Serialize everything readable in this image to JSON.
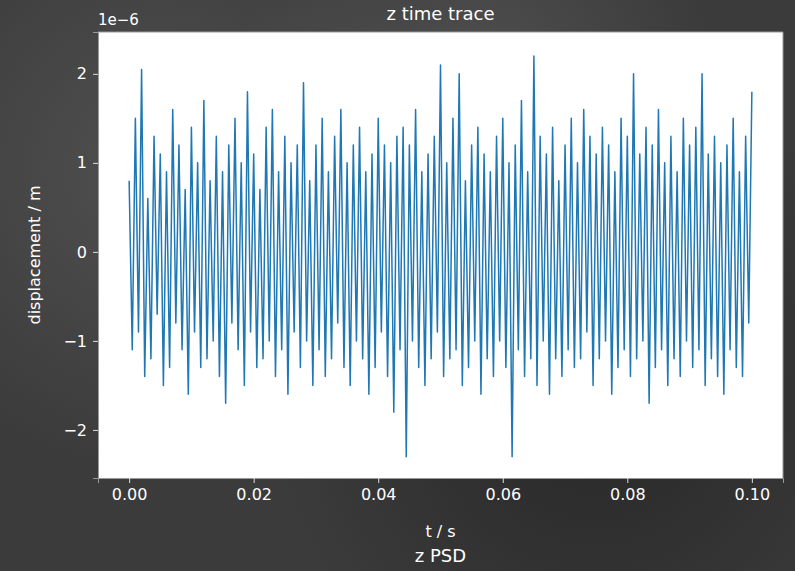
{
  "chart_data": {
    "type": "line",
    "title": "z time trace",
    "x_label": "t / s",
    "y_label": "displacement / m",
    "y_scale_label": "1e−6",
    "annotation": "z PSD",
    "color": "#1f77b4",
    "xlim": [
      -0.005,
      0.105
    ],
    "ylim": [
      -2.54,
      2.47
    ],
    "xticks": [
      {
        "value": 0,
        "label": "0.00"
      },
      {
        "value": 0.02,
        "label": "0.02"
      },
      {
        "value": 0.04,
        "label": "0.04"
      },
      {
        "value": 0.06,
        "label": "0.06"
      },
      {
        "value": 0.08,
        "label": "0.08"
      },
      {
        "value": 0.1,
        "label": "0.10"
      }
    ],
    "yticks": [
      {
        "value": -2,
        "label": "−2"
      },
      {
        "value": -1,
        "label": "−1"
      },
      0,
      1,
      2
    ],
    "x": [
      0,
      0.0005,
      0.001,
      0.0015,
      0.002,
      0.0025,
      0.003,
      0.0035,
      0.004,
      0.0045,
      0.005,
      0.0055,
      0.006,
      0.0065,
      0.007,
      0.0075,
      0.008,
      0.0085,
      0.009,
      0.0095,
      0.01,
      0.0105,
      0.011,
      0.0115,
      0.012,
      0.0125,
      0.013,
      0.0135,
      0.014,
      0.0145,
      0.015,
      0.0155,
      0.016,
      0.0165,
      0.017,
      0.0175,
      0.018,
      0.0185,
      0.019,
      0.0195,
      0.02,
      0.0205,
      0.021,
      0.0215,
      0.022,
      0.0225,
      0.023,
      0.0235,
      0.024,
      0.0245,
      0.025,
      0.0255,
      0.026,
      0.0265,
      0.027,
      0.0275,
      0.028,
      0.0285,
      0.029,
      0.0295,
      0.03,
      0.0305,
      0.031,
      0.0315,
      0.032,
      0.0325,
      0.033,
      0.0335,
      0.034,
      0.0345,
      0.035,
      0.0355,
      0.036,
      0.0365,
      0.037,
      0.0375,
      0.038,
      0.0385,
      0.039,
      0.0395,
      0.04,
      0.0405,
      0.041,
      0.0415,
      0.042,
      0.0425,
      0.043,
      0.0435,
      0.044,
      0.0445,
      0.045,
      0.0455,
      0.046,
      0.0465,
      0.047,
      0.0475,
      0.048,
      0.0485,
      0.049,
      0.0495,
      0.05,
      0.0505,
      0.051,
      0.0515,
      0.052,
      0.0525,
      0.053,
      0.0535,
      0.054,
      0.0545,
      0.055,
      0.0555,
      0.056,
      0.0565,
      0.057,
      0.0575,
      0.058,
      0.0585,
      0.059,
      0.0595,
      0.06,
      0.0605,
      0.061,
      0.0615,
      0.062,
      0.0625,
      0.063,
      0.0635,
      0.064,
      0.0645,
      0.065,
      0.0655,
      0.066,
      0.0665,
      0.067,
      0.0675,
      0.068,
      0.0685,
      0.069,
      0.0695,
      0.07,
      0.0705,
      0.071,
      0.0715,
      0.072,
      0.0725,
      0.073,
      0.0735,
      0.074,
      0.0745,
      0.075,
      0.0755,
      0.076,
      0.0765,
      0.077,
      0.0775,
      0.078,
      0.0785,
      0.079,
      0.0795,
      0.08,
      0.0805,
      0.081,
      0.0815,
      0.082,
      0.0825,
      0.083,
      0.0835,
      0.084,
      0.0845,
      0.085,
      0.0855,
      0.086,
      0.0865,
      0.087,
      0.0875,
      0.088,
      0.0885,
      0.089,
      0.0895,
      0.09,
      0.0905,
      0.091,
      0.0915,
      0.092,
      0.0925,
      0.093,
      0.0935,
      0.094,
      0.0945,
      0.095,
      0.0955,
      0.096,
      0.0965,
      0.097,
      0.0975,
      0.098,
      0.0985,
      0.099,
      0.0995,
      0.1
    ],
    "values": [
      0.8,
      -1.1,
      1.5,
      -0.9,
      2.05,
      -1.4,
      0.6,
      -1.2,
      1.3,
      -0.7,
      1.1,
      -1.5,
      0.9,
      -1.3,
      1.6,
      -0.8,
      1.2,
      -1.1,
      0.7,
      -1.6,
      1.4,
      -0.9,
      1.0,
      -1.3,
      1.7,
      -1.2,
      0.8,
      -1.0,
      1.3,
      -1.4,
      0.9,
      -1.7,
      1.2,
      -0.8,
      1.5,
      -1.1,
      1.0,
      -1.5,
      1.8,
      -0.9,
      1.1,
      -1.3,
      0.7,
      -1.2,
      1.4,
      -1.0,
      1.6,
      -1.4,
      0.9,
      -1.1,
      1.3,
      -1.6,
      1.0,
      -0.9,
      1.2,
      -1.3,
      1.9,
      -1.0,
      0.8,
      -1.5,
      1.2,
      -1.1,
      1.5,
      -1.4,
      0.9,
      -1.2,
      1.3,
      -0.8,
      1.6,
      -1.3,
      1.0,
      -1.5,
      1.2,
      -1.0,
      1.4,
      -1.2,
      0.9,
      -1.6,
      1.1,
      -1.3,
      1.5,
      -0.9,
      1.2,
      -1.4,
      1.0,
      -1.8,
      1.3,
      -1.1,
      1.4,
      -2.3,
      1.2,
      -1.0,
      1.6,
      -1.3,
      0.9,
      -1.5,
      1.1,
      -1.2,
      1.3,
      -0.9,
      2.1,
      -1.4,
      1.0,
      -1.2,
      1.5,
      -1.1,
      2.0,
      -1.5,
      0.8,
      -1.3,
      1.2,
      -1.0,
      1.4,
      -1.6,
      1.1,
      -1.2,
      0.9,
      -1.4,
      1.3,
      -1.0,
      1.5,
      -1.3,
      1.0,
      -2.3,
      1.2,
      -1.1,
      1.7,
      -1.4,
      0.9,
      -1.2,
      2.2,
      -1.5,
      1.3,
      -1.0,
      1.1,
      -1.6,
      1.4,
      -1.2,
      0.8,
      -1.4,
      1.2,
      -1.1,
      1.5,
      -1.3,
      1.0,
      -1.2,
      1.6,
      -0.9,
      1.3,
      -1.5,
      1.1,
      -1.2,
      1.4,
      -1.0,
      1.2,
      -1.6,
      0.9,
      -1.3,
      1.5,
      -1.1,
      1.3,
      -1.4,
      2.0,
      -1.2,
      1.1,
      -1.0,
      1.4,
      -1.7,
      1.2,
      -1.3,
      1.6,
      -1.1,
      1.0,
      -1.5,
      1.3,
      -1.2,
      0.9,
      -1.4,
      1.5,
      -1.0,
      1.2,
      -1.3,
      1.4,
      -1.1,
      2.0,
      -1.5,
      1.1,
      -1.2,
      1.3,
      -1.4,
      1.0,
      -1.6,
      1.2,
      -1.1,
      1.5,
      -1.3,
      0.9,
      -1.4,
      1.3,
      -0.8,
      1.8
    ]
  }
}
